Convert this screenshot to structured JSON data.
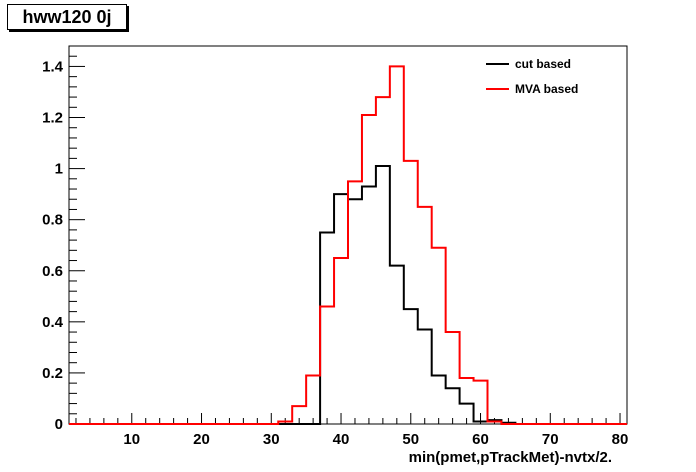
{
  "chart_data": {
    "type": "line",
    "title": "hww120 0j",
    "xlabel": "min(pmet,pTrackMet)-nvtx/2.",
    "ylabel": "",
    "xlim": [
      1,
      81
    ],
    "ylim": [
      0,
      1.48
    ],
    "x_ticks": [
      10,
      20,
      30,
      40,
      50,
      60,
      70,
      80
    ],
    "y_ticks": [
      0,
      0.2,
      0.4,
      0.6,
      0.8,
      1,
      1.2,
      1.4
    ],
    "y_tick_labels": [
      "0",
      "0.2",
      "0.4",
      "0.6",
      "0.8",
      "1",
      "1.2",
      "1.4"
    ],
    "bin_edges": [
      1,
      3,
      5,
      7,
      9,
      11,
      13,
      15,
      17,
      19,
      21,
      23,
      25,
      27,
      29,
      31,
      33,
      35,
      37,
      39,
      41,
      43,
      45,
      47,
      49,
      51,
      53,
      55,
      57,
      59,
      61,
      63,
      65,
      67,
      69,
      71,
      73,
      75,
      77,
      79,
      81
    ],
    "legend_position": "top-right",
    "grid": false,
    "series": [
      {
        "name": "cut based",
        "color": "#000000",
        "values": [
          0,
          0,
          0,
          0,
          0,
          0,
          0,
          0,
          0,
          0,
          0,
          0,
          0,
          0,
          0,
          0,
          0,
          0,
          0.75,
          0.9,
          0.88,
          0.93,
          1.01,
          0.62,
          0.45,
          0.37,
          0.19,
          0.14,
          0.08,
          0.01,
          0.015,
          0.005,
          0,
          0,
          0,
          0,
          0,
          0,
          0,
          0
        ]
      },
      {
        "name": "MVA based",
        "color": "#ff0000",
        "values": [
          0,
          0,
          0,
          0,
          0,
          0,
          0,
          0,
          0,
          0,
          0,
          0,
          0,
          0,
          0,
          0.01,
          0.07,
          0.19,
          0.46,
          0.65,
          0.95,
          1.21,
          1.28,
          1.4,
          1.03,
          0.85,
          0.69,
          0.36,
          0.18,
          0.17,
          0.01,
          0,
          0,
          0,
          0,
          0,
          0,
          0,
          0,
          0
        ]
      }
    ]
  }
}
